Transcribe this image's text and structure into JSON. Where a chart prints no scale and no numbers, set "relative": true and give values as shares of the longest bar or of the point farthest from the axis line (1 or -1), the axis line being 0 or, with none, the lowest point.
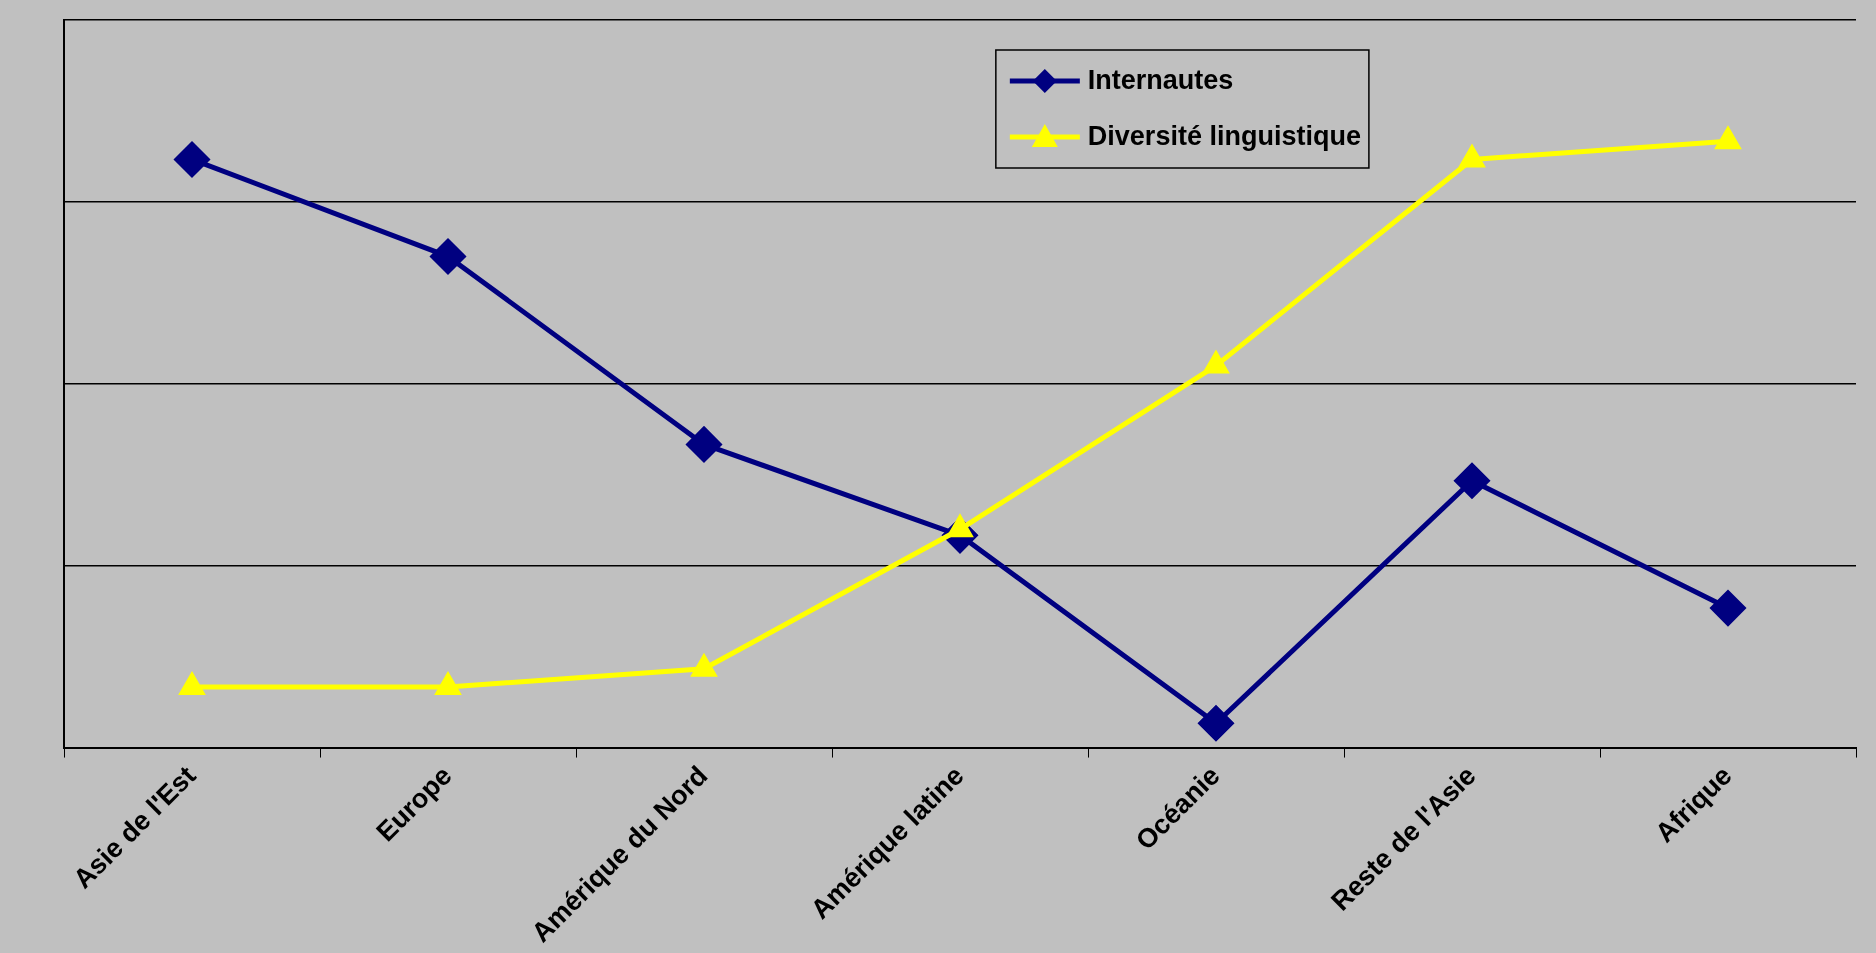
{
  "chart_data": {
    "type": "line",
    "relative": true,
    "grid": "y",
    "legend": "top right",
    "categories": [
      "Asie de l'Est",
      "Europe",
      "Amérique du Nord",
      "Amérique latine",
      "Océanie",
      "Reste de l'Asie",
      "Afrique"
    ],
    "series": [
      {
        "name": "Internautes",
        "color": "#000080",
        "marker": "diamond",
        "values": [
          0.97,
          0.81,
          0.5,
          0.35,
          0.04,
          0.44,
          0.23
        ]
      },
      {
        "name": "Diversité linguistique",
        "color": "#ffff00",
        "marker": "triangle",
        "values": [
          0.1,
          0.1,
          0.13,
          0.36,
          0.63,
          0.97,
          1
        ]
      }
    ]
  }
}
